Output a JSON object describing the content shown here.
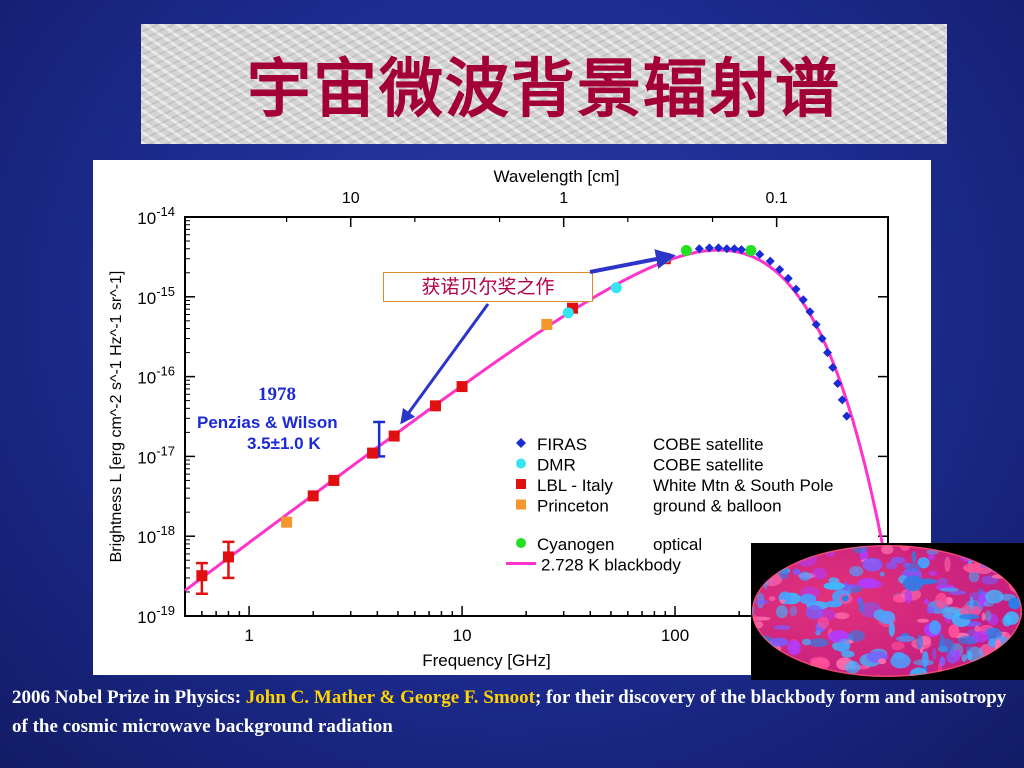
{
  "slide": {
    "title": "宇宙微波背景辐射谱",
    "annotation_nobel": "获诺贝尔奖之作",
    "annotation_year": "1978",
    "annotation_pw_line1": "Penzias & Wilson",
    "annotation_pw_line2": "3.5±1.0 K",
    "caption_prefix": "2006 Nobel Prize in Physics: ",
    "caption_names": "John C. Mather & George F. Smoot",
    "caption_suffix": "; for their discovery of the blackbody form and anisotropy of the cosmic microwave background radiation",
    "colors": {
      "background": "#1c2a8c",
      "title": "#a30037",
      "names": "#ffd400",
      "annotation": "#1c2ad6",
      "arrow": "#2b36c8"
    }
  },
  "chart_data": {
    "type": "scatter",
    "xlabel": "Frequency [GHz]",
    "x2label": "Wavelength [cm]",
    "ylabel": "Brightness L [erg cm^-2 s^-1 Hz^-1 sr^-1]",
    "xscale": "log",
    "yscale": "log",
    "xlim": [
      0.5,
      1000
    ],
    "ylim": [
      1e-19,
      1e-14
    ],
    "x_ticks": [
      "1",
      "10",
      "100"
    ],
    "x2_ticks": [
      "10",
      "1",
      "0.1"
    ],
    "y_ticks": [
      "10-19",
      "10-18",
      "10-17",
      "10-16",
      "10-15",
      "10-14"
    ],
    "legend": [
      {
        "name": "FIRAS",
        "note": "COBE satellite",
        "color": "#1a2bd6",
        "marker": "diamond"
      },
      {
        "name": "DMR",
        "note": "COBE satellite",
        "color": "#33e6f0",
        "marker": "circle"
      },
      {
        "name": "LBL - Italy",
        "note": "White Mtn & South Pole",
        "color": "#e01010",
        "marker": "square"
      },
      {
        "name": "Princeton",
        "note": "ground & balloon",
        "color": "#f5962e",
        "marker": "square"
      },
      {
        "name": "Cyanogen",
        "note": "optical",
        "color": "#22e022",
        "marker": "circle"
      },
      {
        "name": "2.728 K blackbody",
        "note": "",
        "color": "#ff33cc",
        "marker": "line"
      }
    ],
    "series": [
      {
        "name": "LBL - Italy",
        "points": [
          [
            0.6,
            3.2e-19
          ],
          [
            0.8,
            5.5e-19
          ],
          [
            2.0,
            3.2e-18
          ],
          [
            2.5,
            5e-18
          ],
          [
            3.8,
            1.1e-17
          ],
          [
            4.8,
            1.8e-17
          ],
          [
            7.5,
            4.3e-17
          ],
          [
            10,
            7.5e-17
          ],
          [
            33,
            7.2e-16
          ],
          [
            90,
            3e-15
          ]
        ]
      },
      {
        "name": "Princeton",
        "points": [
          [
            1.5,
            1.5e-18
          ],
          [
            25,
            4.5e-16
          ]
        ]
      },
      {
        "name": "DMR",
        "points": [
          [
            31.5,
            6.3e-16
          ],
          [
            53,
            1.3e-15
          ],
          [
            90,
            3.1e-15
          ]
        ]
      },
      {
        "name": "Cyanogen",
        "points": [
          [
            113,
            3.8e-15
          ],
          [
            227,
            3.8e-15
          ]
        ]
      },
      {
        "name": "FIRAS",
        "points": [
          [
            130,
            4e-15
          ],
          [
            145,
            4.1e-15
          ],
          [
            160,
            4.1e-15
          ],
          [
            175,
            4e-15
          ],
          [
            190,
            4e-15
          ],
          [
            205,
            3.9e-15
          ],
          [
            250,
            3.4e-15
          ],
          [
            280,
            2.8e-15
          ],
          [
            310,
            2.2e-15
          ],
          [
            340,
            1.7e-15
          ],
          [
            370,
            1.25e-15
          ],
          [
            400,
            9.2e-16
          ],
          [
            430,
            6.5e-16
          ],
          [
            460,
            4.5e-16
          ],
          [
            490,
            3e-16
          ],
          [
            520,
            2e-16
          ],
          [
            550,
            1.3e-16
          ],
          [
            580,
            8.2e-17
          ],
          [
            610,
            5.1e-17
          ],
          [
            640,
            3.2e-17
          ]
        ]
      }
    ],
    "error_bars": [
      {
        "x": 0.6,
        "ylow": 1.9e-19,
        "yhigh": 4.6e-19
      },
      {
        "x": 0.8,
        "ylow": 3e-19,
        "yhigh": 8.5e-19
      },
      {
        "x": 4.08,
        "ylow": 1e-17,
        "yhigh": 2.7e-17,
        "color": "#1a2bd6"
      }
    ],
    "blackbody_T": 2.728
  }
}
